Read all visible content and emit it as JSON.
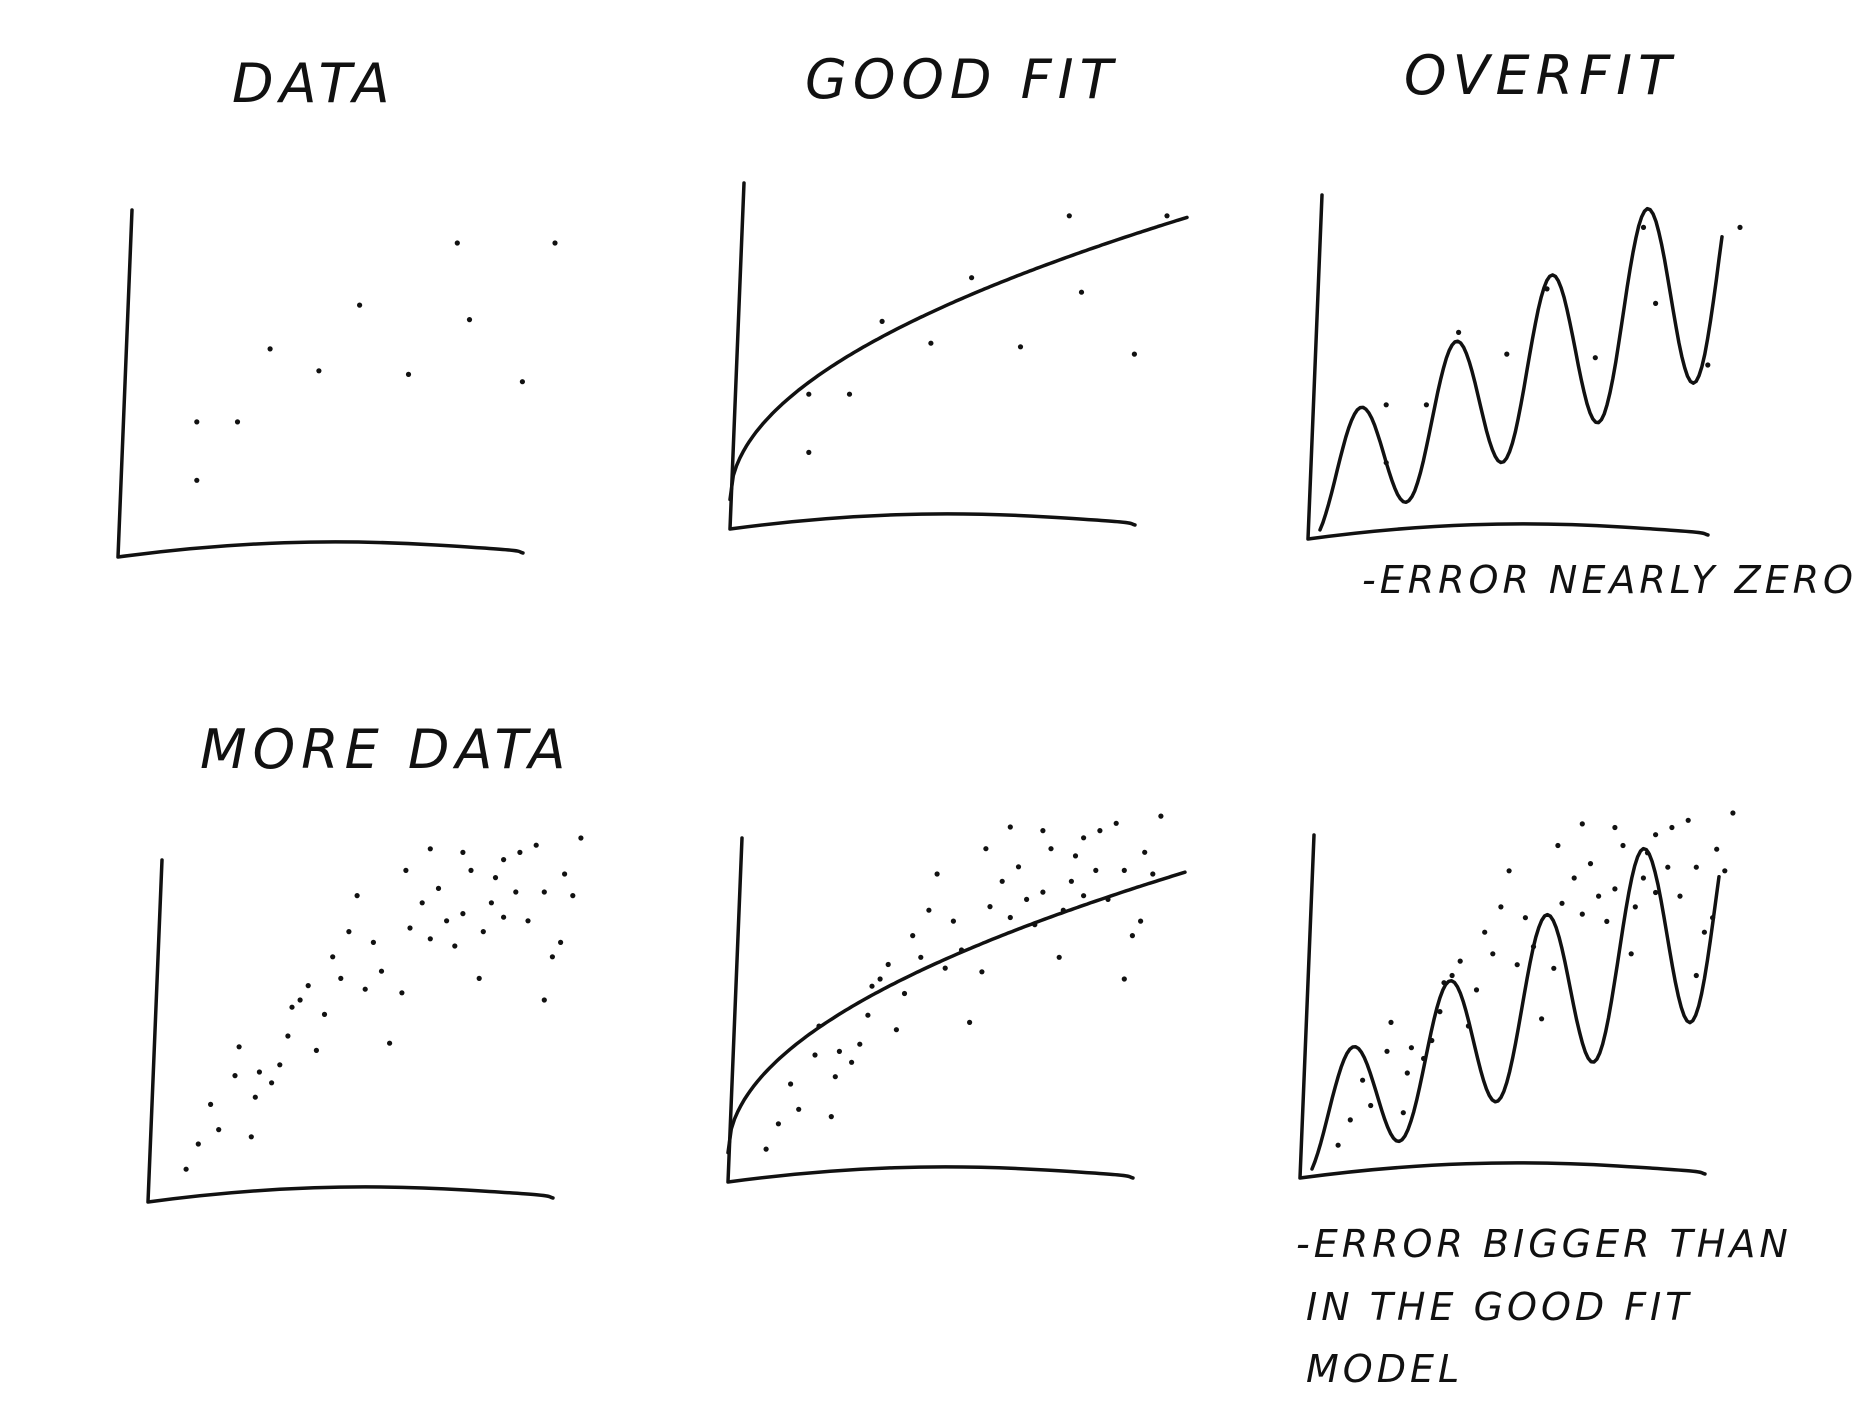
{
  "titles": {
    "data": "DATA",
    "good_fit": "GOOD FIT",
    "overfit": "OVERFIT",
    "more_data": "MORE DATA"
  },
  "notes": {
    "overfit_top": "-ERROR NEARLY ZERO",
    "overfit_bottom_line1": "-ERROR BIGGER THAN",
    "overfit_bottom_line2": "IN THE GOOD FIT",
    "overfit_bottom_line3": "MODEL"
  },
  "panels": [
    {
      "id": "data",
      "x0": 118,
      "y0": 555,
      "x1": 515,
      "y1": 210,
      "dots": "sparse",
      "curve": "none"
    },
    {
      "id": "good-fit",
      "x0": 730,
      "y0": 527,
      "x1": 1127,
      "y1": 183,
      "dots": "sparse",
      "curve": "good"
    },
    {
      "id": "overfit",
      "x0": 1308,
      "y0": 537,
      "x1": 1700,
      "y1": 195,
      "dots": "sparse",
      "curve": "over"
    },
    {
      "id": "more-data",
      "x0": 148,
      "y0": 1200,
      "x1": 545,
      "y1": 860,
      "dots": "dense",
      "curve": "none"
    },
    {
      "id": "more-good-fit",
      "x0": 728,
      "y0": 1180,
      "x1": 1125,
      "y1": 838,
      "dots": "dense",
      "curve": "good"
    },
    {
      "id": "more-overfit",
      "x0": 1300,
      "y0": 1176,
      "x1": 1697,
      "y1": 835,
      "dots": "dense",
      "curve": "over"
    }
  ],
  "sparse_points": [
    [
      0.12,
      0.15
    ],
    [
      0.12,
      0.31
    ],
    [
      0.22,
      0.31
    ],
    [
      0.3,
      0.51
    ],
    [
      0.42,
      0.45
    ],
    [
      0.52,
      0.63
    ],
    [
      0.64,
      0.44
    ],
    [
      0.76,
      0.8
    ],
    [
      0.79,
      0.59
    ],
    [
      0.92,
      0.42
    ],
    [
      1.0,
      0.8
    ]
  ],
  "dense_points": [
    [
      0.02,
      0.03
    ],
    [
      0.05,
      0.1
    ],
    [
      0.08,
      0.21
    ],
    [
      0.1,
      0.14
    ],
    [
      0.14,
      0.29
    ],
    [
      0.15,
      0.37
    ],
    [
      0.18,
      0.12
    ],
    [
      0.19,
      0.23
    ],
    [
      0.2,
      0.3
    ],
    [
      0.23,
      0.27
    ],
    [
      0.25,
      0.32
    ],
    [
      0.27,
      0.4
    ],
    [
      0.28,
      0.48
    ],
    [
      0.3,
      0.5
    ],
    [
      0.32,
      0.54
    ],
    [
      0.34,
      0.36
    ],
    [
      0.36,
      0.46
    ],
    [
      0.38,
      0.62
    ],
    [
      0.4,
      0.56
    ],
    [
      0.42,
      0.69
    ],
    [
      0.44,
      0.79
    ],
    [
      0.46,
      0.53
    ],
    [
      0.48,
      0.66
    ],
    [
      0.5,
      0.58
    ],
    [
      0.52,
      0.38
    ],
    [
      0.55,
      0.52
    ],
    [
      0.57,
      0.7
    ],
    [
      0.6,
      0.77
    ],
    [
      0.62,
      0.67
    ],
    [
      0.64,
      0.81
    ],
    [
      0.66,
      0.72
    ],
    [
      0.68,
      0.65
    ],
    [
      0.7,
      0.74
    ],
    [
      0.72,
      0.86
    ],
    [
      0.74,
      0.56
    ],
    [
      0.75,
      0.69
    ],
    [
      0.77,
      0.77
    ],
    [
      0.78,
      0.84
    ],
    [
      0.8,
      0.73
    ],
    [
      0.83,
      0.8
    ],
    [
      0.84,
      0.91
    ],
    [
      0.86,
      0.72
    ],
    [
      0.88,
      0.93
    ],
    [
      0.9,
      0.8
    ],
    [
      0.92,
      0.62
    ],
    [
      0.94,
      0.66
    ],
    [
      0.95,
      0.85
    ],
    [
      0.97,
      0.79
    ],
    [
      0.99,
      0.95
    ],
    [
      0.9,
      0.5
    ],
    [
      0.62,
      0.92
    ],
    [
      0.8,
      0.89
    ],
    [
      0.56,
      0.86
    ],
    [
      0.7,
      0.91
    ]
  ]
}
